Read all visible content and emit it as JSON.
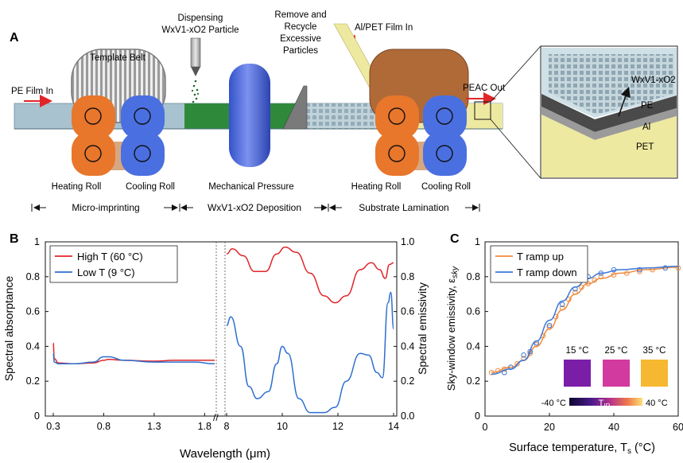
{
  "panelA": {
    "letter": "A",
    "pe_film_in": "PE Film In",
    "template_belt": "Template Belt",
    "dispensing_line1": "Dispensing",
    "dispensing_line2": "WxV1-xO2 Particle",
    "remove_line1": "Remove and",
    "remove_line2": "Recycle",
    "remove_line3": "Excessive",
    "remove_line4": "Particles",
    "al_pet_film_in": "Al/PET Film In",
    "peac_out": "PEAC Out",
    "heating_roll_1": "Heating Roll",
    "cooling_roll_1": "Cooling Roll",
    "mechanical_pressure": "Mechanical Pressure",
    "heating_roll_2": "Heating Roll",
    "cooling_roll_2": "Cooling Roll",
    "stage_micro": "Micro-imprinting",
    "stage_deposition": "WxV1-xO2 Deposition",
    "stage_lamination": "Substrate Lamination",
    "inset_wvo": "WxV1-xO2",
    "inset_pe": "PE",
    "inset_al": "Al",
    "inset_pet": "PET",
    "colors": {
      "heating": "#e8762b",
      "cooling": "#4a6fe0",
      "pe_film": "#a8c2cf",
      "deposition": "#2e8a3a",
      "al_pet": "#eee9a0"
    }
  },
  "panelB": {
    "letter": "B",
    "chart_data": {
      "type": "line",
      "ylabel_left": "Spectral absorptance",
      "ylabel_right": "Spectral emissivity",
      "xlabel": "Wavelength (μm)",
      "ylim": [
        0,
        1
      ],
      "left_ticks": [
        "0",
        "0.2",
        "0.4",
        "0.6",
        "0.8",
        "1"
      ],
      "right_ticks": [
        "0.0",
        "0.2",
        "0.4",
        "0.6",
        "0.8",
        "1.0"
      ],
      "x_ticks_left": [
        "0.3",
        "0.8",
        "1.3",
        "1.8"
      ],
      "x_ticks_right": [
        "8",
        "10",
        "12",
        "14"
      ],
      "legend": [
        "High T (60 °C)",
        "Low T (9 °C)"
      ],
      "series": [
        {
          "name": "High T (60 °C)",
          "color": "#e0262a",
          "solar": [
            [
              0.3,
              0.42
            ],
            [
              0.31,
              0.33
            ],
            [
              0.35,
              0.305
            ],
            [
              0.5,
              0.3
            ],
            [
              0.7,
              0.305
            ],
            [
              0.8,
              0.32
            ],
            [
              0.85,
              0.325
            ],
            [
              1.0,
              0.32
            ],
            [
              1.3,
              0.315
            ],
            [
              1.5,
              0.32
            ],
            [
              1.7,
              0.32
            ],
            [
              1.9,
              0.32
            ]
          ],
          "ir": [
            [
              8.0,
              0.93
            ],
            [
              8.2,
              0.96
            ],
            [
              8.6,
              0.92
            ],
            [
              9.0,
              0.83
            ],
            [
              9.4,
              0.83
            ],
            [
              9.8,
              0.93
            ],
            [
              10.1,
              0.97
            ],
            [
              10.5,
              0.94
            ],
            [
              11.0,
              0.82
            ],
            [
              11.5,
              0.69
            ],
            [
              11.9,
              0.65
            ],
            [
              12.3,
              0.69
            ],
            [
              12.8,
              0.84
            ],
            [
              13.2,
              0.88
            ],
            [
              13.5,
              0.84
            ],
            [
              13.7,
              0.79
            ],
            [
              13.85,
              0.87
            ],
            [
              14.0,
              0.88
            ]
          ]
        },
        {
          "name": "Low T (9 °C)",
          "color": "#2e6fd0",
          "solar": [
            [
              0.3,
              0.36
            ],
            [
              0.31,
              0.31
            ],
            [
              0.35,
              0.3
            ],
            [
              0.5,
              0.3
            ],
            [
              0.7,
              0.31
            ],
            [
              0.8,
              0.34
            ],
            [
              0.85,
              0.34
            ],
            [
              1.0,
              0.32
            ],
            [
              1.3,
              0.31
            ],
            [
              1.5,
              0.31
            ],
            [
              1.7,
              0.31
            ],
            [
              1.9,
              0.3
            ]
          ],
          "ir": [
            [
              8.0,
              0.52
            ],
            [
              8.15,
              0.57
            ],
            [
              8.5,
              0.4
            ],
            [
              8.8,
              0.17
            ],
            [
              9.1,
              0.1
            ],
            [
              9.5,
              0.14
            ],
            [
              9.8,
              0.3
            ],
            [
              10.0,
              0.4
            ],
            [
              10.2,
              0.36
            ],
            [
              10.6,
              0.1
            ],
            [
              11.0,
              0.02
            ],
            [
              11.5,
              0.02
            ],
            [
              11.9,
              0.05
            ],
            [
              12.3,
              0.2
            ],
            [
              12.8,
              0.36
            ],
            [
              13.1,
              0.35
            ],
            [
              13.4,
              0.25
            ],
            [
              13.6,
              0.22
            ],
            [
              13.8,
              0.65
            ],
            [
              13.9,
              0.71
            ],
            [
              14.0,
              0.5
            ]
          ]
        }
      ]
    }
  },
  "panelC": {
    "letter": "C",
    "chart_data": {
      "type": "line",
      "xlabel": "Surface temperature, T",
      "xlabel_sub": "s",
      "xlabel_unit": " (°C)",
      "ylabel": "Sky-window emissivity, ε",
      "ylabel_sub": "sky",
      "xlim": [
        0,
        60
      ],
      "ylim": [
        0,
        1
      ],
      "x_ticks": [
        "0",
        "20",
        "40",
        "60"
      ],
      "y_ticks": [
        "0",
        "0.2",
        "0.4",
        "0.6",
        "0.8",
        "1"
      ],
      "legend": [
        "T ramp up",
        "T ramp down"
      ],
      "series": [
        {
          "name": "T ramp up",
          "color": "#f08a3c",
          "points": [
            [
              2,
              0.25
            ],
            [
              4,
              0.26
            ],
            [
              6,
              0.27
            ],
            [
              8,
              0.28
            ],
            [
              10,
              0.3
            ],
            [
              12,
              0.33
            ],
            [
              14,
              0.36
            ],
            [
              16,
              0.41
            ],
            [
              18,
              0.46
            ],
            [
              20,
              0.51
            ],
            [
              22,
              0.57
            ],
            [
              24,
              0.62
            ],
            [
              26,
              0.67
            ],
            [
              28,
              0.71
            ],
            [
              30,
              0.74
            ],
            [
              32,
              0.76
            ],
            [
              34,
              0.78
            ],
            [
              36,
              0.8
            ],
            [
              40,
              0.81
            ],
            [
              44,
              0.82
            ],
            [
              48,
              0.83
            ],
            [
              52,
              0.84
            ],
            [
              56,
              0.85
            ],
            [
              60,
              0.85
            ]
          ],
          "curve": [
            [
              2,
              0.25
            ],
            [
              8,
              0.28
            ],
            [
              12,
              0.32
            ],
            [
              16,
              0.4
            ],
            [
              20,
              0.5
            ],
            [
              24,
              0.61
            ],
            [
              28,
              0.7
            ],
            [
              32,
              0.76
            ],
            [
              36,
              0.79
            ],
            [
              42,
              0.82
            ],
            [
              50,
              0.84
            ],
            [
              60,
              0.855
            ]
          ]
        },
        {
          "name": "T ramp down",
          "color": "#3b78d8",
          "points": [
            [
              6,
              0.25
            ],
            [
              8,
              0.28
            ],
            [
              12,
              0.35
            ],
            [
              14,
              0.37
            ],
            [
              16,
              0.42
            ],
            [
              20,
              0.52
            ],
            [
              24,
              0.64
            ],
            [
              28,
              0.73
            ],
            [
              32,
              0.8
            ],
            [
              36,
              0.82
            ],
            [
              40,
              0.84
            ],
            [
              48,
              0.84
            ],
            [
              56,
              0.85
            ]
          ],
          "curve": [
            [
              2,
              0.24
            ],
            [
              8,
              0.27
            ],
            [
              12,
              0.32
            ],
            [
              16,
              0.43
            ],
            [
              20,
              0.55
            ],
            [
              24,
              0.66
            ],
            [
              28,
              0.74
            ],
            [
              32,
              0.79
            ],
            [
              36,
              0.82
            ],
            [
              42,
              0.84
            ],
            [
              50,
              0.85
            ],
            [
              60,
              0.86
            ]
          ]
        }
      ],
      "inset": {
        "temps": [
          "15 °C",
          "25 °C",
          "35 °C"
        ],
        "swatch_colors": [
          "#7a1ea8",
          "#d23aa0",
          "#f5b830"
        ],
        "bar_min": "-40 °C",
        "bar_label": "T",
        "bar_label_sub": "IR",
        "bar_max": "40 °C"
      }
    }
  }
}
